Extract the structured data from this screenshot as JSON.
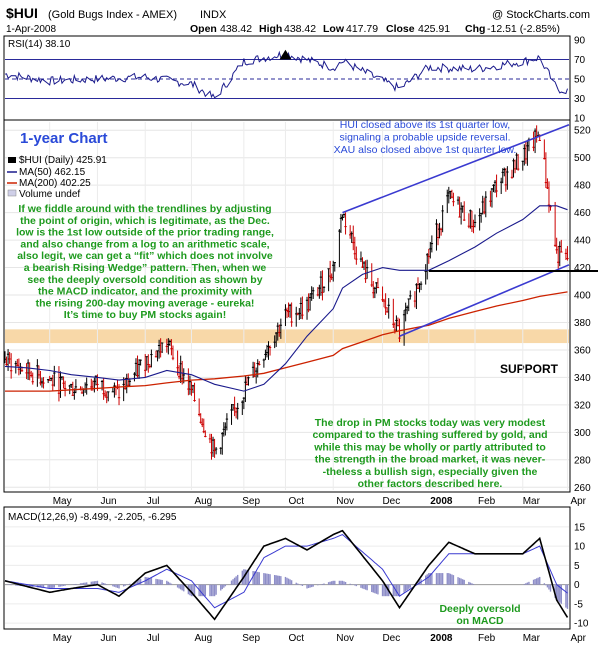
{
  "header": {
    "symbol": "$HUI",
    "name": "(Gold Bugs Index - AMEX)",
    "exchange": "INDX",
    "watermark": "@ StockCharts.com",
    "date": "1-Apr-2008",
    "open_label": "Open",
    "open": "438.42",
    "high_label": "High",
    "high": "438.42",
    "low_label": "Low",
    "low": "417.79",
    "close_label": "Close",
    "close": "425.91",
    "chg_label": "Chg",
    "chg": "-12.51 (-2.85%)"
  },
  "rsi_panel": {
    "legend": "RSI(14) 38.10",
    "ticks": [
      "90",
      "70",
      "50",
      "30",
      "10"
    ]
  },
  "main_panel": {
    "chart_title": "1-year Chart",
    "legend_price": "$HUI (Daily) 425.91",
    "legend_ma50": "MA(50) 462.15",
    "legend_ma200": "MA(200) 402.25",
    "legend_volume": "Volume undef",
    "support_label": "SUPPORT",
    "ticks": [
      "520",
      "500",
      "480",
      "460",
      "440",
      "420",
      "400",
      "380",
      "360",
      "340",
      "320",
      "300",
      "280",
      "260"
    ],
    "annotation_top": [
      "HUI closed above its 1st quarter low,",
      "signaling a probable upside reversal.",
      "XAU also closed above 1st quarter low."
    ],
    "annotation_left": [
      "If we fiddle around with the trendlines by adjusting",
      "the point of origin, which is legitimate, as the Dec.",
      "low is the 1st low outside of the prior trading range,",
      "and also change from a log to an arithmetic scale,",
      "also legit, we can get a “fit” which does not involve",
      "a bearish Rising Wedge” pattern. Then, when we",
      "see the deeply oversold condition as shown by",
      "the MACD indicator, and the proximity with",
      "the rising 200-day moving average - eureka!",
      "It’s time to buy PM stocks again!"
    ],
    "annotation_bottom": [
      "The drop in PM stocks today was very modest",
      "compared to the trashing suffered by gold, and",
      "while this may be wholly or partly attributed to",
      "the strength in the broad market, it was never-",
      "-theless a bullish sign, especially given the",
      "other factors described here."
    ],
    "months": [
      "May",
      "Jun",
      "Jul",
      "Aug",
      "Sep",
      "Oct",
      "Nov",
      "Dec",
      "2008",
      "Feb",
      "Mar",
      "Apr"
    ]
  },
  "macd_panel": {
    "legend": "MACD(12,26,9) -8.499, -2.205, -6.295",
    "annotation": [
      "Deeply oversold",
      "on MACD"
    ],
    "ticks": [
      "15",
      "10",
      "5",
      "0",
      "-5",
      "-10"
    ],
    "months": [
      "May",
      "Jun",
      "Jul",
      "Aug",
      "Sep",
      "Oct",
      "Nov",
      "Dec",
      "2008",
      "Feb",
      "Mar",
      "Apr"
    ]
  },
  "colors": {
    "up_bar": "#000000",
    "down_bar": "#cc0000",
    "ma50": "#1a1a8c",
    "ma200": "#cc2200",
    "trendline": "#3a3ad0",
    "support_band": "#f8d8a8",
    "macd_line": "#000000",
    "signal_line": "#3a3ad0",
    "histogram": "#8e8ec8",
    "rsi_line": "#1a1a8c"
  },
  "chart_data": [
    {
      "type": "line",
      "title": "RSI(14)",
      "ylim": [
        10,
        90
      ],
      "x": [
        "2007-04-02",
        "2007-05-01",
        "2007-06-01",
        "2007-07-02",
        "2007-08-01",
        "2007-08-16",
        "2007-09-04",
        "2007-10-01",
        "2007-11-01",
        "2007-11-07",
        "2007-12-03",
        "2007-12-14",
        "2008-01-02",
        "2008-02-01",
        "2008-03-03",
        "2008-03-14",
        "2008-03-25",
        "2008-04-01"
      ],
      "series": [
        {
          "values": [
            55,
            48,
            50,
            52,
            45,
            30,
            68,
            76,
            62,
            68,
            48,
            40,
            62,
            60,
            68,
            72,
            40,
            38.1
          ]
        }
      ]
    },
    {
      "type": "line",
      "title": "$HUI (Daily)",
      "ylim": [
        260,
        525
      ],
      "x": [
        "2007-04-02",
        "2007-04-16",
        "2007-05-01",
        "2007-05-15",
        "2007-06-01",
        "2007-06-15",
        "2007-07-02",
        "2007-07-16",
        "2007-08-01",
        "2007-08-16",
        "2007-09-04",
        "2007-09-17",
        "2007-10-01",
        "2007-10-15",
        "2007-11-01",
        "2007-11-07",
        "2007-11-20",
        "2007-12-03",
        "2007-12-14",
        "2008-01-02",
        "2008-01-15",
        "2008-02-01",
        "2008-02-15",
        "2008-03-03",
        "2008-03-14",
        "2008-03-25",
        "2008-04-01"
      ],
      "series": [
        {
          "name": "$HUI (Daily)",
          "values": [
            352,
            345,
            338,
            332,
            336,
            328,
            352,
            365,
            330,
            285,
            330,
            358,
            385,
            392,
            420,
            460,
            420,
            395,
            372,
            430,
            470,
            452,
            480,
            500,
            518,
            430,
            425.91
          ]
        },
        {
          "name": "MA(50)",
          "values": [
            348,
            347,
            345,
            342,
            340,
            338,
            340,
            345,
            342,
            335,
            330,
            335,
            350,
            370,
            390,
            405,
            415,
            420,
            418,
            418,
            425,
            435,
            445,
            455,
            465,
            465,
            462.15
          ]
        },
        {
          "name": "MA(200)",
          "values": [
            330,
            330,
            330,
            331,
            332,
            333,
            334,
            336,
            338,
            339,
            341,
            343,
            347,
            351,
            356,
            361,
            366,
            371,
            374,
            378,
            383,
            388,
            392,
            396,
            399,
            401,
            402.25
          ]
        }
      ]
    },
    {
      "type": "line",
      "title": "MACD(12,26,9)",
      "ylim": [
        -10,
        15
      ],
      "x": [
        "2007-04-02",
        "2007-05-01",
        "2007-05-15",
        "2007-06-01",
        "2007-06-15",
        "2007-07-02",
        "2007-07-16",
        "2007-08-01",
        "2007-08-16",
        "2007-09-04",
        "2007-09-17",
        "2007-10-01",
        "2007-10-15",
        "2007-11-01",
        "2007-11-07",
        "2007-12-03",
        "2007-12-14",
        "2008-01-02",
        "2008-01-15",
        "2008-02-01",
        "2008-03-03",
        "2008-03-14",
        "2008-03-25",
        "2008-04-01"
      ],
      "series": [
        {
          "name": "MACD",
          "values": [
            1,
            -2,
            -1,
            0,
            -3,
            3,
            5,
            -2,
            -9,
            2,
            10,
            12,
            9,
            13,
            14,
            1,
            -6,
            5,
            11,
            8,
            8,
            12,
            -4,
            -8.499
          ]
        },
        {
          "name": "Signal",
          "values": [
            1,
            -1,
            -1,
            -1,
            -2,
            1,
            4,
            1,
            -6,
            -2,
            7,
            10,
            10,
            12,
            13,
            4,
            -3,
            2,
            8,
            8,
            8,
            10,
            0,
            -2.205
          ]
        },
        {
          "name": "Histogram",
          "values": [
            0,
            -1,
            0,
            1,
            -1,
            2,
            1,
            -3,
            -3,
            4,
            3,
            2,
            -1,
            1,
            1,
            -3,
            -3,
            3,
            3,
            0,
            0,
            2,
            -4,
            -6.295
          ]
        }
      ]
    }
  ]
}
